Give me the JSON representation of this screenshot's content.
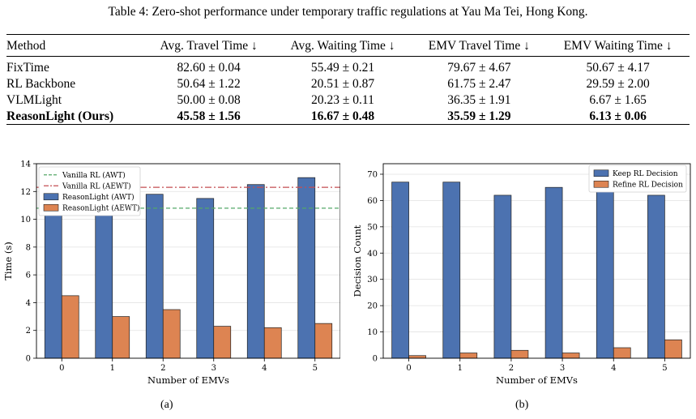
{
  "table": {
    "caption": "Table 4: Zero-shot performance under temporary traffic regulations at Yau Ma Tei, Hong Kong.",
    "columns": [
      "Method",
      "Avg. Travel Time ↓",
      "Avg. Waiting Time ↓",
      "EMV Travel Time ↓",
      "EMV Waiting Time ↓"
    ],
    "rows": [
      {
        "method": "FixTime",
        "cells": [
          "82.60 ± 0.04",
          "55.49 ± 0.21",
          "79.67 ± 4.67",
          "50.67 ± 4.17"
        ],
        "bold": false
      },
      {
        "method": "RL Backbone",
        "cells": [
          "50.64 ± 1.22",
          "20.51 ± 0.87",
          "61.75 ± 2.47",
          "29.59 ± 2.00"
        ],
        "bold": false
      },
      {
        "method": "VLMLight",
        "cells": [
          "50.00 ± 0.08",
          "20.23 ± 0.11",
          "36.35 ± 1.91",
          "6.67 ± 1.65"
        ],
        "bold": false
      },
      {
        "method": "ReasonLight (Ours)",
        "cells": [
          "45.58 ± 1.56",
          "16.67 ± 0.48",
          "35.59 ± 1.29",
          "6.13 ± 0.06"
        ],
        "bold": true
      }
    ]
  },
  "subfigure_labels": [
    "(a)",
    "(b)"
  ],
  "colors": {
    "blue": "#4c72b0",
    "orange": "#dd8452",
    "green": "#55a868",
    "red": "#c44e52",
    "grid": "#e2e2e2"
  },
  "chart_data": [
    {
      "type": "bar",
      "categories": [
        "0",
        "1",
        "2",
        "3",
        "4",
        "5"
      ],
      "xlabel": "Number of EMVs",
      "ylabel": "Time (s)",
      "ylim": [
        0,
        14
      ],
      "yticks": [
        0,
        2,
        4,
        6,
        8,
        10,
        12,
        14
      ],
      "grid": true,
      "legend_position": "top-left",
      "series": [
        {
          "name": "ReasonLight (AWT)",
          "values": [
            12.4,
            12.7,
            11.8,
            11.5,
            12.5,
            13.0
          ],
          "color": "#4c72b0"
        },
        {
          "name": "ReasonLight (AEWT)",
          "values": [
            4.5,
            3.0,
            3.5,
            2.3,
            2.2,
            2.5
          ],
          "color": "#dd8452"
        }
      ],
      "reference_lines": [
        {
          "name": "Vanilla RL (AWT)",
          "value": 10.8,
          "style": "dashed",
          "color": "#55a868"
        },
        {
          "name": "Vanilla RL (AEWT)",
          "value": 12.3,
          "style": "dashdot",
          "color": "#c44e52"
        }
      ],
      "legend_order": [
        "Vanilla RL (AWT)",
        "Vanilla RL (AEWT)",
        "ReasonLight (AWT)",
        "ReasonLight (AEWT)"
      ]
    },
    {
      "type": "bar",
      "categories": [
        "0",
        "1",
        "2",
        "3",
        "4",
        "5"
      ],
      "xlabel": "Number of EMVs",
      "ylabel": "Decision Count",
      "ylim": [
        0,
        74
      ],
      "yticks": [
        0,
        10,
        20,
        30,
        40,
        50,
        60,
        70
      ],
      "grid": true,
      "legend_position": "top-right",
      "series": [
        {
          "name": "Keep RL Decision",
          "values": [
            67,
            67,
            62,
            65,
            66,
            62
          ],
          "color": "#4c72b0"
        },
        {
          "name": "Refine RL Decision",
          "values": [
            1,
            2,
            3,
            2,
            4,
            7
          ],
          "color": "#dd8452"
        }
      ],
      "reference_lines": [],
      "legend_order": [
        "Keep RL Decision",
        "Refine RL Decision"
      ]
    }
  ]
}
